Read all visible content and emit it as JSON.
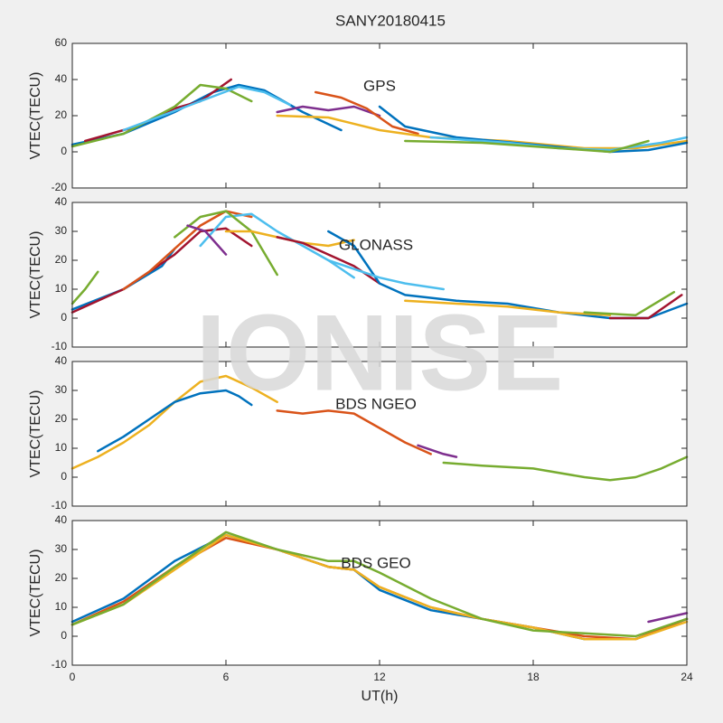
{
  "watermark": "IONISE",
  "chart_data": [
    {
      "type": "line",
      "title": "SANY20180415",
      "annotation": "GPS",
      "ylabel": "VTEC(TECU)",
      "ylim": [
        -20,
        60
      ],
      "yticks": [
        -20,
        0,
        20,
        40,
        60
      ],
      "series": [
        {
          "color": "#0072BD",
          "x": [
            0,
            2,
            4,
            5.5,
            6.5,
            7.5,
            9,
            10.5
          ],
          "values": [
            4,
            10,
            22,
            33,
            37,
            34,
            22,
            12
          ]
        },
        {
          "color": "#A2142F",
          "x": [
            0.5,
            2.5,
            4,
            5,
            6.2
          ],
          "values": [
            6,
            14,
            24,
            28,
            40
          ]
        },
        {
          "color": "#77AC30",
          "x": [
            0,
            2,
            4,
            5,
            6,
            7
          ],
          "values": [
            3,
            10,
            25,
            37,
            35,
            28
          ]
        },
        {
          "color": "#4DBEEE",
          "x": [
            2,
            3.5,
            5,
            6.5,
            7.5,
            8.5
          ],
          "values": [
            12,
            20,
            28,
            36,
            33,
            26
          ]
        },
        {
          "color": "#7E2F8E",
          "x": [
            8,
            9,
            10,
            11,
            12
          ],
          "values": [
            22,
            25,
            23,
            25,
            20
          ]
        },
        {
          "color": "#D95319",
          "x": [
            9.5,
            10.5,
            11.5,
            12.5,
            13.5
          ],
          "values": [
            33,
            30,
            24,
            14,
            10
          ]
        },
        {
          "color": "#EDB120",
          "x": [
            8,
            10,
            12,
            14,
            17,
            20,
            22,
            24
          ],
          "values": [
            20,
            19,
            12,
            8,
            6,
            2,
            2,
            6
          ]
        },
        {
          "color": "#0072BD",
          "x": [
            12,
            13,
            15,
            18,
            21,
            22.5,
            24
          ],
          "values": [
            25,
            14,
            8,
            4,
            0,
            1,
            5
          ]
        },
        {
          "color": "#4DBEEE",
          "x": [
            14,
            17,
            19,
            21,
            23,
            24
          ],
          "values": [
            8,
            5,
            2,
            1,
            5,
            8
          ]
        },
        {
          "color": "#77AC30",
          "x": [
            13,
            16,
            19,
            21,
            22.5
          ],
          "values": [
            6,
            5,
            2,
            0,
            6
          ]
        }
      ]
    },
    {
      "type": "line",
      "annotation": "GLONASS",
      "ylabel": "VTEC(TECU)",
      "ylim": [
        -10,
        40
      ],
      "yticks": [
        -10,
        0,
        10,
        20,
        30,
        40
      ],
      "series": [
        {
          "color": "#0072BD",
          "x": [
            0,
            2,
            3.5,
            4
          ],
          "values": [
            3,
            10,
            18,
            24
          ]
        },
        {
          "color": "#77AC30",
          "x": [
            0,
            0.5,
            1
          ],
          "values": [
            5,
            10,
            16
          ]
        },
        {
          "color": "#A2142F",
          "x": [
            0,
            2,
            4,
            5,
            6,
            7
          ],
          "values": [
            2,
            10,
            22,
            30,
            31,
            25
          ]
        },
        {
          "color": "#D95319",
          "x": [
            2,
            3,
            4,
            5,
            6,
            7
          ],
          "values": [
            10,
            16,
            24,
            32,
            37,
            35
          ]
        },
        {
          "color": "#4DBEEE",
          "x": [
            5,
            6,
            7,
            8,
            9,
            10,
            11
          ],
          "values": [
            25,
            35,
            36,
            30,
            25,
            20,
            14
          ]
        },
        {
          "color": "#77AC30",
          "x": [
            4,
            5,
            6,
            7,
            8
          ],
          "values": [
            28,
            35,
            37,
            30,
            15
          ]
        },
        {
          "color": "#EDB120",
          "x": [
            6,
            7,
            8,
            9,
            10,
            11
          ],
          "values": [
            30,
            30,
            28,
            26,
            25,
            27
          ]
        },
        {
          "color": "#7E2F8E",
          "x": [
            4.5,
            5.2,
            6
          ],
          "values": [
            32,
            30,
            22
          ]
        },
        {
          "color": "#A2142F",
          "x": [
            8,
            9,
            10,
            11,
            12
          ],
          "values": [
            28,
            26,
            22,
            18,
            12
          ]
        },
        {
          "color": "#0072BD",
          "x": [
            10,
            11,
            12,
            13,
            15,
            17,
            19,
            21,
            22.5,
            24
          ],
          "values": [
            30,
            25,
            12,
            8,
            6,
            5,
            2,
            0,
            0,
            5
          ]
        },
        {
          "color": "#4DBEEE",
          "x": [
            10,
            12,
            13,
            14.5
          ],
          "values": [
            20,
            14,
            12,
            10
          ]
        },
        {
          "color": "#EDB120",
          "x": [
            13,
            15,
            17,
            19,
            21
          ],
          "values": [
            6,
            5,
            4,
            2,
            1
          ]
        },
        {
          "color": "#77AC30",
          "x": [
            20,
            22,
            23.5
          ],
          "values": [
            2,
            1,
            9
          ]
        },
        {
          "color": "#A2142F",
          "x": [
            21,
            22.5,
            23.8
          ],
          "values": [
            0,
            0,
            8
          ]
        }
      ]
    },
    {
      "type": "line",
      "annotation": "BDS NGEO",
      "ylabel": "VTEC(TECU)",
      "ylim": [
        -10,
        40
      ],
      "yticks": [
        -10,
        0,
        10,
        20,
        30,
        40
      ],
      "series": [
        {
          "color": "#EDB120",
          "x": [
            0,
            1,
            2,
            3,
            4,
            5,
            6,
            7,
            8
          ],
          "values": [
            3,
            7,
            12,
            18,
            26,
            33,
            35,
            31,
            26
          ]
        },
        {
          "color": "#0072BD",
          "x": [
            1,
            2,
            3,
            4,
            5,
            6,
            6.5,
            7
          ],
          "values": [
            9,
            14,
            20,
            26,
            29,
            30,
            28,
            25
          ]
        },
        {
          "color": "#D95319",
          "x": [
            8,
            9,
            10,
            11,
            12,
            13,
            14
          ],
          "values": [
            23,
            22,
            23,
            22,
            17,
            12,
            8
          ]
        },
        {
          "color": "#7E2F8E",
          "x": [
            13.5,
            14.5,
            15
          ],
          "values": [
            11,
            8,
            7
          ]
        },
        {
          "color": "#77AC30",
          "x": [
            14.5,
            16,
            18,
            20,
            21,
            22,
            23,
            24
          ],
          "values": [
            5,
            4,
            3,
            0,
            -1,
            0,
            3,
            7
          ]
        }
      ]
    },
    {
      "type": "line",
      "annotation": "BDS GEO",
      "ylabel": "VTEC(TECU)",
      "xlabel": "UT(h)",
      "xlim": [
        0,
        24
      ],
      "xticks": [
        0,
        6,
        12,
        18,
        24
      ],
      "ylim": [
        -10,
        40
      ],
      "yticks": [
        -10,
        0,
        10,
        20,
        30,
        40
      ],
      "series": [
        {
          "color": "#0072BD",
          "x": [
            0,
            2,
            4,
            6,
            8,
            10,
            11,
            12,
            14,
            16,
            18,
            20,
            22,
            24
          ],
          "values": [
            5,
            13,
            26,
            35,
            30,
            24,
            23,
            16,
            9,
            6,
            3,
            -1,
            -1,
            6
          ]
        },
        {
          "color": "#D95319",
          "x": [
            0,
            2,
            4,
            6,
            8,
            10,
            11,
            12,
            14,
            16,
            18,
            20,
            22,
            24
          ],
          "values": [
            4,
            12,
            24,
            34,
            30,
            24,
            23,
            17,
            10,
            6,
            3,
            0,
            -1,
            6
          ]
        },
        {
          "color": "#EDB120",
          "x": [
            0,
            2,
            4,
            6,
            8,
            10,
            11,
            12,
            14,
            16,
            18,
            20,
            22,
            24
          ],
          "values": [
            4,
            11,
            23,
            35,
            30,
            24,
            23,
            17,
            10,
            6,
            3,
            -1,
            -1,
            5
          ]
        },
        {
          "color": "#77AC30",
          "x": [
            0,
            2,
            4,
            6,
            8,
            10,
            11,
            12,
            14,
            16,
            18,
            20,
            22,
            24
          ],
          "values": [
            4,
            11,
            24,
            36,
            30,
            26,
            26,
            22,
            13,
            6,
            2,
            1,
            0,
            6
          ]
        },
        {
          "color": "#7E2F8E",
          "x": [
            22.5,
            24
          ],
          "values": [
            5,
            8
          ]
        }
      ]
    }
  ]
}
